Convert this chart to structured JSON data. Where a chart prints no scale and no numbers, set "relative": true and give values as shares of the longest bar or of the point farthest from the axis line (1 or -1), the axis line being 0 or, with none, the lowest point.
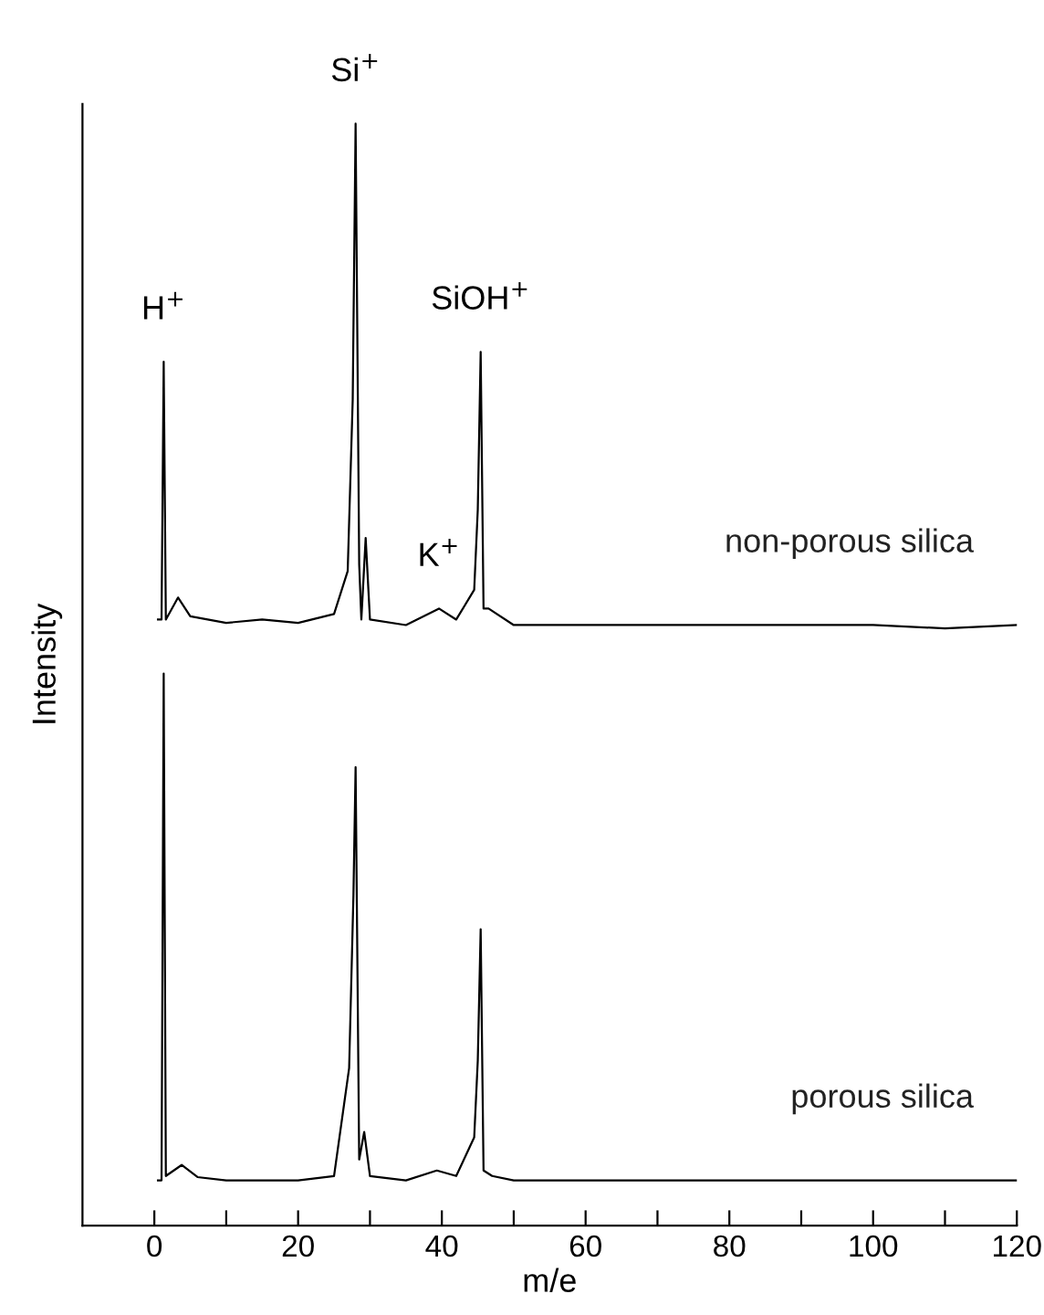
{
  "chart_data": {
    "type": "line",
    "relative": true,
    "xlabel": "m/e",
    "ylabel": "Intensity",
    "xlim": [
      -10,
      120
    ],
    "xticks": [
      0,
      {
        "value": 10,
        "label": null
      },
      20,
      {
        "value": 30,
        "label": null
      },
      40,
      {
        "value": 50,
        "label": null
      },
      60,
      {
        "value": 70,
        "label": null
      },
      80,
      {
        "value": 90,
        "label": null
      },
      100,
      {
        "value": 110,
        "label": null
      },
      120
    ],
    "grid": false,
    "legend": false,
    "marker": "none",
    "line_style": "solid",
    "annotations": [
      {
        "text": "H$^{+}$",
        "x": 1.3,
        "y": 0.784
      },
      {
        "text": "Si$^{+}$",
        "x": 28,
        "y": 1.0
      },
      {
        "text": "SiOH$^{+}$",
        "x": 45.4,
        "y": 0.793
      },
      {
        "text": "K$^{+}$",
        "x": 39.6,
        "y": 0.56
      }
    ],
    "series": [
      {
        "name": "non-porous silica",
        "color": "#000000",
        "x": [
          0.5,
          1.0,
          1.3,
          1.6,
          3.3,
          5,
          10,
          15,
          20,
          25,
          26.9,
          27.6,
          28.0,
          28.5,
          28.8,
          29.4,
          30,
          35,
          39.6,
          42,
          44.5,
          45.0,
          45.4,
          45.8,
          46.5,
          50,
          60,
          80,
          100,
          110,
          120
        ],
        "values": [
          0.55,
          0.55,
          0.784,
          0.55,
          0.57,
          0.553,
          0.547,
          0.55,
          0.547,
          0.555,
          0.594,
          0.75,
          1.0,
          0.6,
          0.55,
          0.624,
          0.55,
          0.545,
          0.56,
          0.55,
          0.577,
          0.65,
          0.793,
          0.56,
          0.56,
          0.545,
          0.545,
          0.545,
          0.545,
          0.542,
          0.545
        ]
      },
      {
        "name": "porous silica",
        "color": "#000000",
        "x": [
          0.5,
          1.0,
          1.3,
          1.6,
          3.8,
          6,
          10,
          20,
          25,
          27.1,
          27.7,
          28.0,
          28.5,
          29.2,
          30,
          35,
          39.3,
          42,
          44.5,
          45.0,
          45.4,
          45.8,
          47,
          50,
          80,
          120
        ],
        "values": [
          0.041,
          0.041,
          0.501,
          0.045,
          0.055,
          0.044,
          0.041,
          0.041,
          0.045,
          0.143,
          0.3,
          0.416,
          0.06,
          0.085,
          0.045,
          0.041,
          0.05,
          0.045,
          0.08,
          0.15,
          0.269,
          0.05,
          0.045,
          0.041,
          0.041,
          0.041
        ]
      }
    ]
  }
}
